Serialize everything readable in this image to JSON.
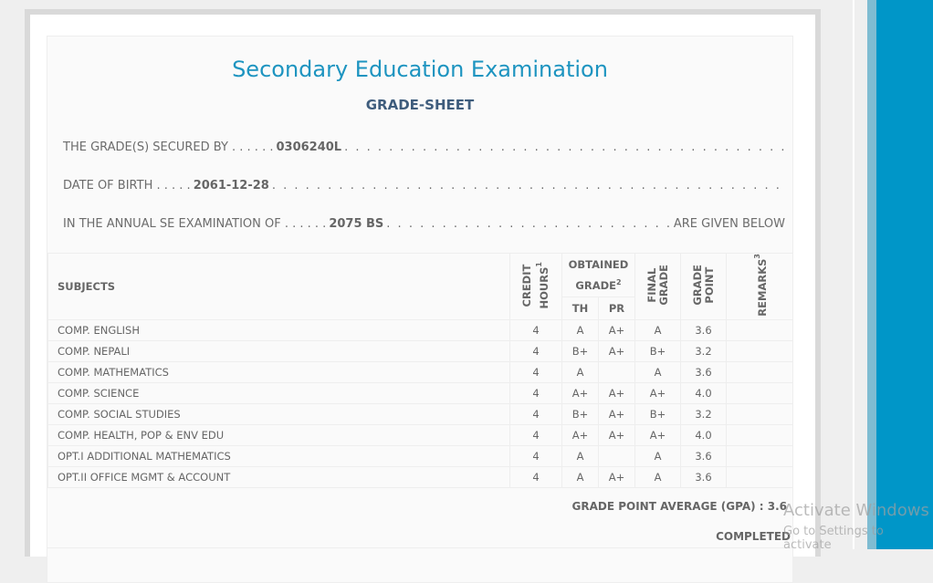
{
  "title": "Secondary Education Examination",
  "subtitle": "GRADE-SHEET",
  "info": {
    "secured_label": "THE GRADE(S) SECURED BY . . . . . .",
    "symbol_no": "0306240L",
    "dob_label": "DATE OF BIRTH . . . . .",
    "dob": "2061-12-28",
    "exam_label": "IN THE ANNUAL SE EXAMINATION OF . . . . . .",
    "exam_year": "2075 BS",
    "given_below": "ARE GIVEN BELOW"
  },
  "headers": {
    "subjects": "SUBJECTS",
    "credit": "CREDIT",
    "hours": "HOURS",
    "obtained": "OBTAINED",
    "grade": "GRADE",
    "th": "TH",
    "pr": "PR",
    "final": "FINAL",
    "final_grade": "GRADE",
    "gp_grade": "GRADE",
    "gp_point": "POINT",
    "remarks": "REMARKS",
    "sup1": "1",
    "sup2": "2",
    "sup3": "3"
  },
  "rows": [
    {
      "subject": "COMP. ENGLISH",
      "credit": "4",
      "th": "A",
      "pr": "A+",
      "final": "A",
      "gp": "3.6",
      "remarks": ""
    },
    {
      "subject": "COMP. NEPALI",
      "credit": "4",
      "th": "B+",
      "pr": "A+",
      "final": "B+",
      "gp": "3.2",
      "remarks": ""
    },
    {
      "subject": "COMP. MATHEMATICS",
      "credit": "4",
      "th": "A",
      "pr": "",
      "final": "A",
      "gp": "3.6",
      "remarks": ""
    },
    {
      "subject": "COMP. SCIENCE",
      "credit": "4",
      "th": "A+",
      "pr": "A+",
      "final": "A+",
      "gp": "4.0",
      "remarks": ""
    },
    {
      "subject": "COMP. SOCIAL STUDIES",
      "credit": "4",
      "th": "B+",
      "pr": "A+",
      "final": "B+",
      "gp": "3.2",
      "remarks": ""
    },
    {
      "subject": "COMP. HEALTH, POP & ENV EDU",
      "credit": "4",
      "th": "A+",
      "pr": "A+",
      "final": "A+",
      "gp": "4.0",
      "remarks": ""
    },
    {
      "subject": "OPT.I ADDITIONAL MATHEMATICS",
      "credit": "4",
      "th": "A",
      "pr": "",
      "final": "A",
      "gp": "3.6",
      "remarks": ""
    },
    {
      "subject": "OPT.II OFFICE MGMT & ACCOUNT",
      "credit": "4",
      "th": "A",
      "pr": "A+",
      "final": "A",
      "gp": "3.6",
      "remarks": ""
    }
  ],
  "gpa": "GRADE POINT AVERAGE (GPA) : 3.6",
  "status": "COMPLETED",
  "watermark": {
    "line1": "Activate Windows",
    "line2": "Go to Settings to activate"
  },
  "colors": {
    "title": "#1d94c0",
    "accent": "#0096c8"
  }
}
